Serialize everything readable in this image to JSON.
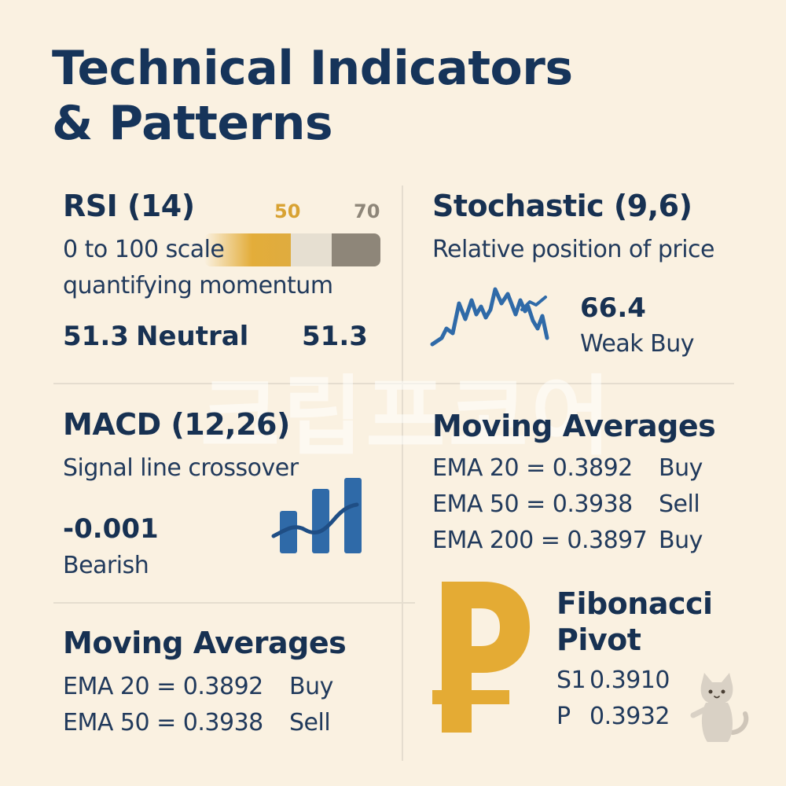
{
  "title": {
    "line1": "Technical Indicators",
    "line2": "& Patterns"
  },
  "watermark": "크립프코어",
  "colors": {
    "background": "#faf1e1",
    "navy": "#173152",
    "gold": "#e3ad3a",
    "blue": "#2f6aa8",
    "gray_segment": "#8e8679",
    "light_segment": "#e6dfd1"
  },
  "rsi": {
    "heading": "RSI (14)",
    "scale_marker_1": "50",
    "scale_marker_2": "70",
    "desc_line1": "0 to 100 scale",
    "desc_line2": "quantifying momentum",
    "value": "51.3",
    "status": "Neutral",
    "value_right": "51.3"
  },
  "stochastic": {
    "heading": "Stochastic (9,6)",
    "desc": "Relative position of price",
    "value": "66.4",
    "status": "Weak Buy",
    "icon": "line-chart-icon"
  },
  "macd": {
    "heading": "MACD (12,26)",
    "desc": "Signal line crossover",
    "value": "-0.001",
    "status": "Bearish",
    "icon": "bar-chart-icon"
  },
  "moving_averages_right": {
    "heading": "Moving Averages",
    "rows": [
      {
        "label": "EMA 20 = 0.3892",
        "signal": "Buy"
      },
      {
        "label": "EMA 50 = 0.3938",
        "signal": "Sell"
      },
      {
        "label": "EMA 200 = 0.3897",
        "signal": "Buy"
      }
    ]
  },
  "moving_averages_left": {
    "heading": "Moving Averages",
    "rows": [
      {
        "label": "EMA 20 = 0.3892",
        "signal": "Buy"
      },
      {
        "label": "EMA 50 = 0.3938",
        "signal": "Sell"
      }
    ]
  },
  "fibonacci": {
    "heading_line1": "Fibonacci",
    "heading_line2": "Pivot",
    "s1_label": "S1",
    "s1_value": "0.3910",
    "p_label": "P",
    "p_value": "0.3932",
    "icon": "peso-sign-icon"
  },
  "mascot": {
    "icon": "cat-mascot-icon"
  }
}
